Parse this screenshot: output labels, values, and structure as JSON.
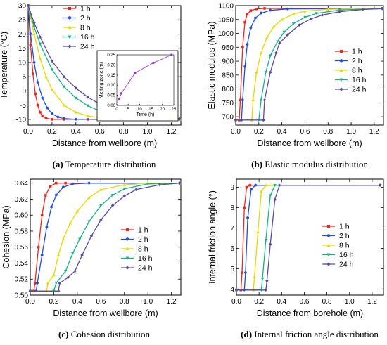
{
  "colors": {
    "1 h": "#e8281e",
    "2 h": "#1f4fd8",
    "8 h": "#e6d800",
    "16 h": "#18b083",
    "24 h": "#5b4aa0",
    "inset": "#9b30c8"
  },
  "chart_data": [
    {
      "id": "a",
      "type": "line",
      "caption_letter": "(a)",
      "caption_text": " Temperature distribution",
      "xlabel": "Distance from wellbore (m)",
      "ylabel": "Temperature (°C)",
      "xlim": [
        0,
        1.28
      ],
      "ylim": [
        -12,
        30
      ],
      "xticks": [
        0.0,
        0.2,
        0.4,
        0.6,
        0.8,
        1.0,
        1.2
      ],
      "xtick_labels": [
        "0.0",
        "0.2",
        "0.4",
        "0.6",
        "0.8",
        "1.0",
        "1.2"
      ],
      "yticks": [
        -10,
        -5,
        0,
        5,
        10,
        15,
        20,
        25,
        30
      ],
      "ytick_labels": [
        "-10",
        "-5",
        "0",
        "5",
        "10",
        "15",
        "20",
        "25",
        "30"
      ],
      "legend": {
        "position": "top-left",
        "entries": [
          "1 h",
          "2 h",
          "8 h",
          "16 h",
          "24 h"
        ]
      },
      "series": [
        {
          "name": "1 h",
          "x": [
            0,
            0.02,
            0.04,
            0.06,
            0.08,
            0.1,
            0.12,
            0.15,
            0.2,
            0.3,
            0.5,
            1.27
          ],
          "y": [
            30,
            16,
            6,
            -1,
            -5,
            -7.5,
            -8.8,
            -9.6,
            -10,
            -10,
            -10,
            -10
          ]
        },
        {
          "name": "2 h",
          "x": [
            0,
            0.02,
            0.05,
            0.08,
            0.12,
            0.16,
            0.2,
            0.25,
            0.3,
            0.4,
            0.6,
            1.27
          ],
          "y": [
            30,
            20,
            10,
            3,
            -2.5,
            -6,
            -8,
            -9.2,
            -9.7,
            -10,
            -10,
            -10
          ]
        },
        {
          "name": "8 h",
          "x": [
            0,
            0.05,
            0.1,
            0.15,
            0.2,
            0.3,
            0.4,
            0.5,
            0.6,
            0.8,
            1.0,
            1.27
          ],
          "y": [
            30,
            20,
            11.5,
            5,
            0.5,
            -5,
            -7.5,
            -8.8,
            -9.4,
            -9.8,
            -10,
            -10
          ]
        },
        {
          "name": "16 h",
          "x": [
            0,
            0.05,
            0.1,
            0.2,
            0.3,
            0.4,
            0.5,
            0.6,
            0.7,
            0.8,
            1.0,
            1.27
          ],
          "y": [
            30,
            22.5,
            16.5,
            7.5,
            1.5,
            -2.5,
            -5.2,
            -7,
            -8.2,
            -8.9,
            -9.6,
            -10
          ]
        },
        {
          "name": "24 h",
          "x": [
            0,
            0.05,
            0.1,
            0.2,
            0.3,
            0.4,
            0.5,
            0.6,
            0.7,
            0.8,
            1.0,
            1.27
          ],
          "y": [
            30,
            24,
            19,
            10.5,
            5,
            1,
            -2.2,
            -4.6,
            -6.4,
            -7.6,
            -9,
            -9.8
          ]
        }
      ],
      "inset": {
        "type": "line",
        "xlabel": "Time (h)",
        "ylabel": "Melting zone (m)",
        "xlim": [
          0,
          25
        ],
        "ylim": [
          0,
          0.25
        ],
        "xticks": [
          0,
          5,
          10,
          15,
          20,
          25
        ],
        "xtick_labels": [
          "0",
          "5",
          "10",
          "15",
          "20",
          "25"
        ],
        "yticks": [
          0.0,
          0.05,
          0.1,
          0.15,
          0.2,
          0.25
        ],
        "ytick_labels": [
          "0.00",
          "0.05",
          "0.10",
          "0.15",
          "0.20",
          "0.25"
        ],
        "x": [
          1,
          2,
          8,
          16,
          24
        ],
        "y": [
          0.03,
          0.06,
          0.16,
          0.21,
          0.25
        ]
      }
    },
    {
      "id": "b",
      "type": "line",
      "caption_letter": "(b)",
      "caption_text": " Elastic modulus distribution",
      "xlabel": "Distance from wellbore (m)",
      "ylabel": "Elastic modulus (MPa)",
      "xlim": [
        0,
        1.28
      ],
      "ylim": [
        670,
        1100
      ],
      "xticks": [
        0.0,
        0.2,
        0.4,
        0.6,
        0.8,
        1.0,
        1.2
      ],
      "xtick_labels": [
        "0.0",
        "0.2",
        "0.4",
        "0.6",
        "0.8",
        "1.0",
        "1.2"
      ],
      "yticks": [
        700,
        750,
        800,
        850,
        900,
        950,
        1000,
        1050,
        1100
      ],
      "ytick_labels": [
        "700",
        "750",
        "800",
        "850",
        "900",
        "950",
        "1000",
        "1050",
        "1100"
      ],
      "legend": {
        "position": "right",
        "entries": [
          "1 h",
          "2 h",
          "8 h",
          "16 h",
          "24 h"
        ]
      },
      "series": [
        {
          "name": "1 h",
          "x": [
            0,
            0.03,
            0.04,
            0.06,
            0.08,
            0.1,
            0.13,
            0.18,
            0.25,
            1.27
          ],
          "y": [
            688,
            688,
            760,
            950,
            1040,
            1070,
            1082,
            1088,
            1090,
            1090
          ]
        },
        {
          "name": "2 h",
          "x": [
            0,
            0.05,
            0.06,
            0.08,
            0.1,
            0.13,
            0.17,
            0.22,
            0.3,
            0.45,
            1.27
          ],
          "y": [
            688,
            688,
            760,
            880,
            960,
            1020,
            1055,
            1073,
            1083,
            1088,
            1090
          ]
        },
        {
          "name": "8 h",
          "x": [
            0,
            0.14,
            0.15,
            0.18,
            0.22,
            0.27,
            0.33,
            0.4,
            0.5,
            0.6,
            0.8,
            1.27
          ],
          "y": [
            688,
            688,
            760,
            860,
            930,
            985,
            1025,
            1050,
            1070,
            1080,
            1087,
            1090
          ]
        },
        {
          "name": "16 h",
          "x": [
            0,
            0.2,
            0.22,
            0.26,
            0.3,
            0.36,
            0.42,
            0.5,
            0.6,
            0.7,
            0.9,
            1.27
          ],
          "y": [
            688,
            688,
            760,
            860,
            920,
            970,
            1005,
            1035,
            1058,
            1072,
            1084,
            1090
          ]
        },
        {
          "name": "24 h",
          "x": [
            0,
            0.24,
            0.25,
            0.3,
            0.35,
            0.38,
            0.45,
            0.55,
            0.65,
            0.75,
            0.9,
            1.1,
            1.27
          ],
          "y": [
            688,
            688,
            760,
            860,
            930,
            965,
            995,
            1030,
            1052,
            1066,
            1078,
            1086,
            1089
          ]
        }
      ]
    },
    {
      "id": "c",
      "type": "line",
      "caption_letter": "(c)",
      "caption_text": " Cohesion distribution",
      "xlabel": "Distance from wellbore (m)",
      "ylabel": "Cohesion (MPa)",
      "xlim": [
        0,
        1.28
      ],
      "ylim": [
        0.5,
        0.645
      ],
      "xticks": [
        0.0,
        0.2,
        0.4,
        0.6,
        0.8,
        1.0,
        1.2
      ],
      "xtick_labels": [
        "0.0",
        "0.2",
        "0.4",
        "0.6",
        "0.8",
        "1.0",
        "1.2"
      ],
      "yticks": [
        0.5,
        0.52,
        0.54,
        0.56,
        0.58,
        0.6,
        0.62,
        0.64
      ],
      "ytick_labels": [
        "0.50",
        "0.52",
        "0.54",
        "0.56",
        "0.58",
        "0.60",
        "0.62",
        "0.64"
      ],
      "legend": {
        "position": "right",
        "entries": [
          "1 h",
          "2 h",
          "8 h",
          "16 h",
          "24 h"
        ]
      },
      "series": [
        {
          "name": "1 h",
          "x": [
            0,
            0.03,
            0.04,
            0.07,
            0.1,
            0.13,
            0.17,
            0.22,
            0.3,
            1.27
          ],
          "y": [
            0.505,
            0.505,
            0.515,
            0.56,
            0.6,
            0.625,
            0.636,
            0.64,
            0.64,
            0.64
          ]
        },
        {
          "name": "2 h",
          "x": [
            0,
            0.05,
            0.06,
            0.1,
            0.14,
            0.18,
            0.22,
            0.28,
            0.36,
            0.5,
            1.27
          ],
          "y": [
            0.505,
            0.505,
            0.515,
            0.55,
            0.585,
            0.61,
            0.625,
            0.635,
            0.639,
            0.64,
            0.64
          ]
        },
        {
          "name": "8 h",
          "x": [
            0,
            0.14,
            0.15,
            0.2,
            0.24,
            0.28,
            0.34,
            0.4,
            0.5,
            0.6,
            0.8,
            1.0,
            1.27
          ],
          "y": [
            0.505,
            0.505,
            0.515,
            0.525,
            0.55,
            0.57,
            0.59,
            0.605,
            0.622,
            0.632,
            0.638,
            0.64,
            0.64
          ]
        },
        {
          "name": "16 h",
          "x": [
            0,
            0.2,
            0.22,
            0.3,
            0.36,
            0.42,
            0.5,
            0.6,
            0.7,
            0.8,
            1.0,
            1.27
          ],
          "y": [
            0.505,
            0.505,
            0.515,
            0.53,
            0.552,
            0.57,
            0.592,
            0.612,
            0.625,
            0.633,
            0.639,
            0.64
          ]
        },
        {
          "name": "24 h",
          "x": [
            0,
            0.24,
            0.25,
            0.32,
            0.38,
            0.44,
            0.52,
            0.6,
            0.7,
            0.8,
            0.9,
            1.1,
            1.27
          ],
          "y": [
            0.505,
            0.505,
            0.515,
            0.522,
            0.53,
            0.55,
            0.574,
            0.594,
            0.612,
            0.624,
            0.632,
            0.638,
            0.64
          ]
        }
      ]
    },
    {
      "id": "d",
      "type": "line",
      "caption_letter": "(d)",
      "caption_text": " Internal friction angle distribution",
      "xlabel": "Distance from borehole (m)",
      "ylabel": "Internal friction angle (°)",
      "xlim": [
        0,
        1.3
      ],
      "ylim": [
        3.7,
        9.4
      ],
      "xticks": [
        0.0,
        0.2,
        0.4,
        0.6,
        0.8,
        1.0,
        1.2
      ],
      "xtick_labels": [
        "0.0",
        "0.2",
        "0.4",
        "0.6",
        "0.8",
        "1.0",
        "1.2"
      ],
      "yticks": [
        4,
        5,
        6,
        7,
        8,
        9
      ],
      "ytick_labels": [
        "4",
        "5",
        "6",
        "7",
        "8",
        "9"
      ],
      "legend": {
        "position": "right",
        "entries": [
          "1 h",
          "2 h",
          "8 h",
          "16 h",
          "24 h"
        ]
      },
      "series": [
        {
          "name": "1 h",
          "x": [
            0,
            0.04,
            0.05,
            0.07,
            0.09,
            0.12,
            1.27
          ],
          "y": [
            3.95,
            3.95,
            4.8,
            8.0,
            9.0,
            9.1,
            9.1
          ]
        },
        {
          "name": "2 h",
          "x": [
            0,
            0.07,
            0.08,
            0.1,
            0.13,
            0.17,
            1.27
          ],
          "y": [
            3.95,
            3.95,
            4.8,
            7.5,
            8.9,
            9.1,
            9.1
          ]
        },
        {
          "name": "8 h",
          "x": [
            0,
            0.15,
            0.16,
            0.19,
            0.22,
            0.26,
            1.27
          ],
          "y": [
            3.95,
            3.95,
            4.6,
            6.8,
            8.8,
            9.1,
            9.1
          ]
        },
        {
          "name": "16 h",
          "x": [
            0,
            0.22,
            0.23,
            0.26,
            0.3,
            0.34,
            1.27
          ],
          "y": [
            3.95,
            3.95,
            4.5,
            6.4,
            8.6,
            9.1,
            9.1
          ]
        },
        {
          "name": "24 h",
          "x": [
            0,
            0.26,
            0.27,
            0.3,
            0.34,
            0.38,
            1.27
          ],
          "y": [
            3.95,
            3.95,
            4.4,
            6.2,
            8.4,
            9.1,
            9.1
          ]
        }
      ]
    }
  ]
}
